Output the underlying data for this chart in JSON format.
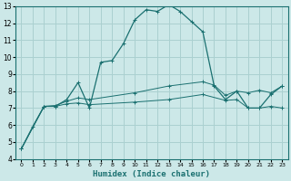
{
  "xlabel": "Humidex (Indice chaleur)",
  "ylabel": "",
  "bg_color": "#cce8e8",
  "grid_color": "#aad0d0",
  "line_color": "#1a7070",
  "spine_color": "#1a7070",
  "xlim": [
    -0.5,
    23.5
  ],
  "ylim": [
    4,
    13
  ],
  "xticks": [
    0,
    1,
    2,
    3,
    4,
    5,
    6,
    7,
    8,
    9,
    10,
    11,
    12,
    13,
    14,
    15,
    16,
    17,
    18,
    19,
    20,
    21,
    22,
    23
  ],
  "yticks": [
    4,
    5,
    6,
    7,
    8,
    9,
    10,
    11,
    12,
    13
  ],
  "series1": [
    [
      0,
      4.6
    ],
    [
      1,
      5.9
    ],
    [
      2,
      7.1
    ],
    [
      3,
      7.1
    ],
    [
      4,
      7.5
    ],
    [
      5,
      8.5
    ],
    [
      6,
      7.0
    ],
    [
      7,
      9.7
    ],
    [
      8,
      9.8
    ],
    [
      9,
      10.8
    ],
    [
      10,
      12.2
    ],
    [
      11,
      12.8
    ],
    [
      12,
      12.7
    ],
    [
      13,
      13.1
    ],
    [
      14,
      12.7
    ],
    [
      15,
      12.1
    ],
    [
      16,
      11.5
    ],
    [
      17,
      8.3
    ],
    [
      18,
      7.5
    ],
    [
      19,
      8.0
    ],
    [
      20,
      7.0
    ],
    [
      21,
      7.0
    ],
    [
      22,
      7.8
    ],
    [
      23,
      8.3
    ]
  ],
  "series2": [
    [
      0,
      4.6
    ],
    [
      2,
      7.1
    ],
    [
      3,
      7.15
    ],
    [
      4,
      7.4
    ],
    [
      5,
      7.6
    ],
    [
      6,
      7.5
    ],
    [
      10,
      7.9
    ],
    [
      13,
      8.3
    ],
    [
      16,
      8.55
    ],
    [
      17,
      8.35
    ],
    [
      18,
      7.75
    ],
    [
      19,
      8.0
    ],
    [
      20,
      7.9
    ],
    [
      21,
      8.05
    ],
    [
      22,
      7.9
    ],
    [
      23,
      8.3
    ]
  ],
  "series3": [
    [
      0,
      4.6
    ],
    [
      2,
      7.1
    ],
    [
      3,
      7.1
    ],
    [
      4,
      7.25
    ],
    [
      5,
      7.3
    ],
    [
      6,
      7.2
    ],
    [
      10,
      7.35
    ],
    [
      13,
      7.5
    ],
    [
      16,
      7.8
    ],
    [
      18,
      7.45
    ],
    [
      19,
      7.5
    ],
    [
      20,
      7.0
    ],
    [
      21,
      7.0
    ],
    [
      22,
      7.1
    ],
    [
      23,
      7.0
    ]
  ]
}
